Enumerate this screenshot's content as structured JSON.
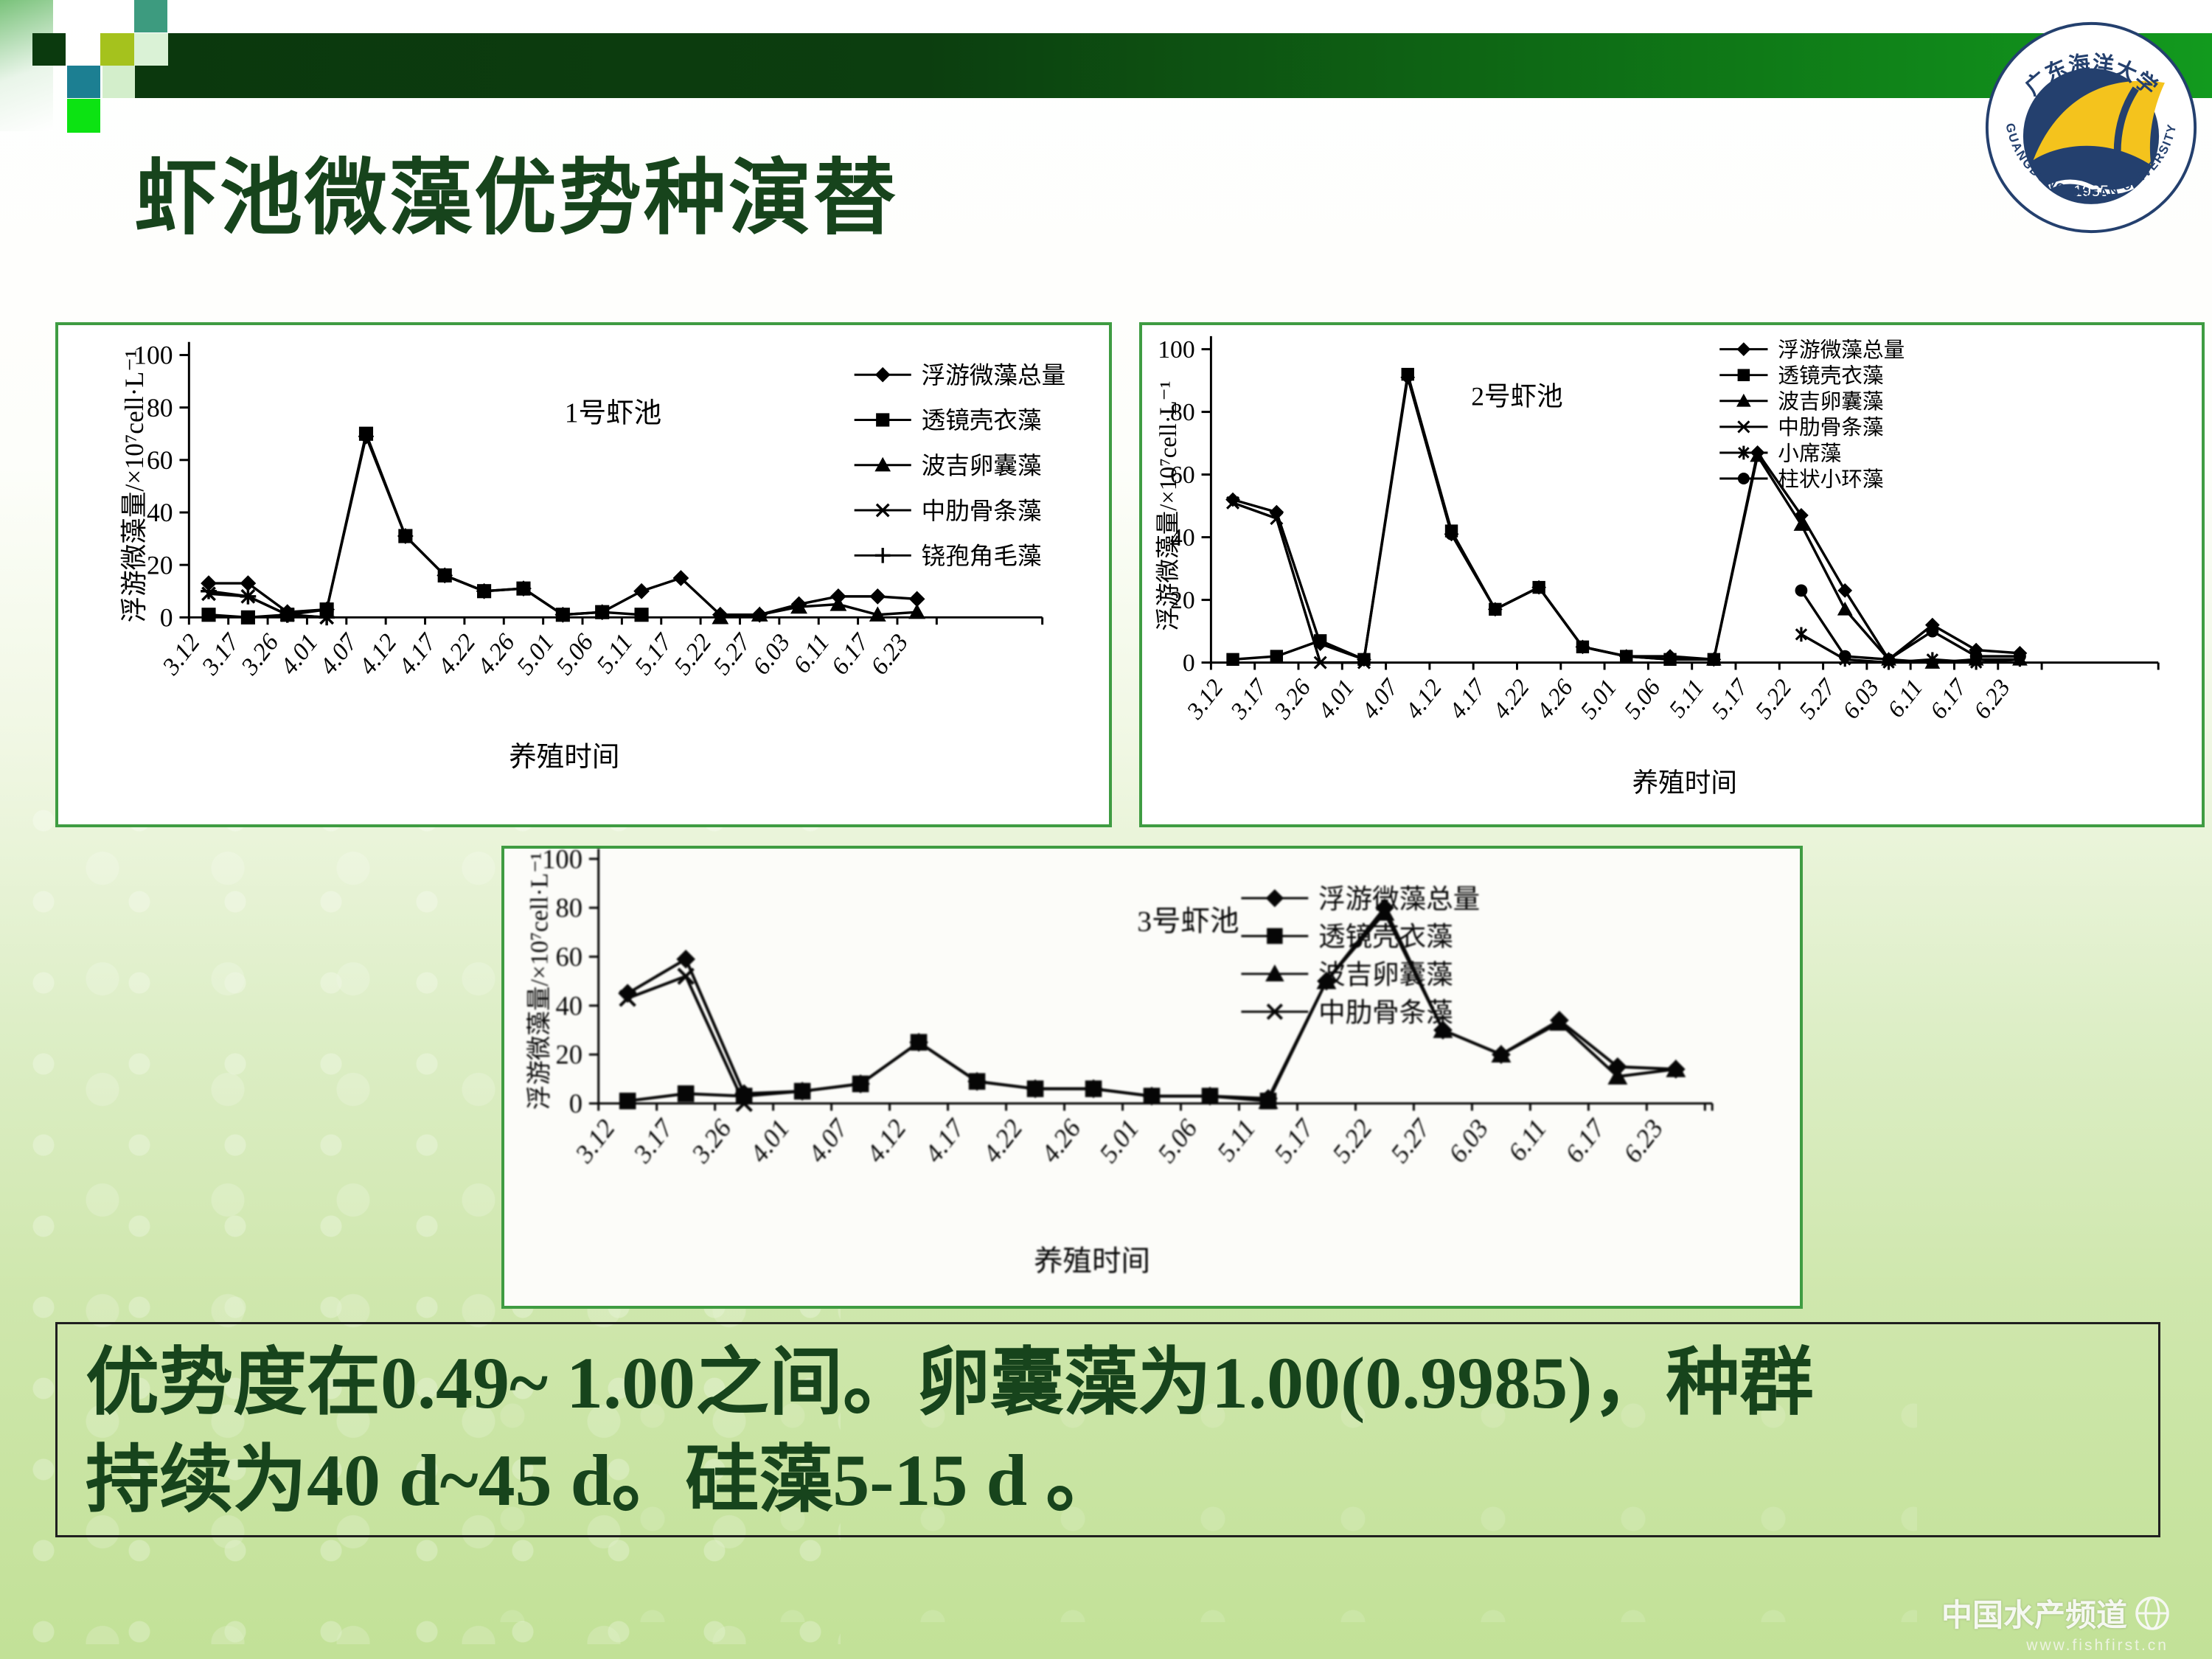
{
  "slide": {
    "title": "虾池微藻优势种演替",
    "conclusion": {
      "line1": "优势度在0.49~ 1.00之间。卵囊藻为1.00(0.9985)，种群",
      "line2": "持续为40 d~45 d。硅藻5-15 d 。"
    },
    "watermark": {
      "text": "中国水产频道",
      "url": "www.fishfirst.cn"
    },
    "logo": {
      "year": "1935",
      "top_text": "广东海洋大学",
      "bottom_text": "GUANGDONG OCEAN UNIVERSITY"
    },
    "colors": {
      "title_green": "#17441c",
      "header_bar_dark": "#0b380d",
      "header_bar_light": "#129a1e",
      "chart_border_green": "#3f9c42",
      "slide_bottom_green": "#c2e197",
      "logo_navy": "#24406e",
      "logo_yellow": "#f4c31d",
      "line_black": "#000000"
    }
  },
  "chart_data": [
    {
      "type": "line",
      "title": "1号虾池",
      "xlabel": "养殖时间",
      "ylabel": "浮游微藻量/×10⁷cell·L⁻¹",
      "ylim": [
        0,
        100
      ],
      "yticks": [
        0,
        20,
        40,
        60,
        80,
        100
      ],
      "grid": false,
      "legend_position": "right-top",
      "categories": [
        "3.12",
        "3.17",
        "3.26",
        "4.01",
        "4.07",
        "4.12",
        "4.17",
        "4.22",
        "4.26",
        "5.01",
        "5.06",
        "5.11",
        "5.17",
        "5.22",
        "5.27",
        "6.03",
        "6.11",
        "6.17",
        "6.23"
      ],
      "series": [
        {
          "name": "浮游微藻总量",
          "marker": "diamond",
          "values": [
            13,
            13,
            2,
            3,
            69,
            31,
            16,
            10,
            11,
            1,
            2,
            10,
            15,
            1,
            1,
            5,
            8,
            8,
            7
          ]
        },
        {
          "name": "透镜壳衣藻",
          "marker": "square",
          "values": [
            1,
            0,
            1,
            3,
            70,
            31,
            16,
            10,
            11,
            1,
            2,
            1,
            null,
            null,
            null,
            null,
            null,
            null,
            null
          ]
        },
        {
          "name": "波吉卵囊藻",
          "marker": "triangle",
          "values": [
            null,
            null,
            null,
            null,
            null,
            null,
            null,
            null,
            null,
            null,
            null,
            null,
            null,
            0,
            1,
            4,
            5,
            1,
            2
          ]
        },
        {
          "name": "中肋骨条藻",
          "marker": "x",
          "values": [
            9,
            8,
            1,
            0,
            null,
            null,
            null,
            null,
            null,
            null,
            null,
            null,
            null,
            null,
            null,
            null,
            null,
            null,
            null
          ]
        },
        {
          "name": "铙孢角毛藻",
          "marker": "plus",
          "values": [
            10,
            8,
            1,
            0,
            null,
            null,
            null,
            null,
            null,
            null,
            null,
            null,
            null,
            null,
            null,
            null,
            null,
            null,
            null
          ]
        }
      ]
    },
    {
      "type": "line",
      "title": "2号虾池",
      "xlabel": "养殖时间",
      "ylabel": "浮游微藻量/×10⁷cell·L⁻¹",
      "ylim": [
        0,
        100
      ],
      "yticks": [
        0,
        20,
        40,
        60,
        80,
        100
      ],
      "grid": false,
      "legend_position": "right-top",
      "categories": [
        "3.12",
        "3.17",
        "3.26",
        "4.01",
        "4.07",
        "4.12",
        "4.17",
        "4.22",
        "4.26",
        "5.01",
        "5.06",
        "5.11",
        "5.17",
        "5.22",
        "5.27",
        "6.03",
        "6.11",
        "6.17",
        "6.23"
      ],
      "series": [
        {
          "name": "浮游微藻总量",
          "marker": "diamond",
          "values": [
            52,
            48,
            6,
            1,
            91,
            41,
            17,
            24,
            5,
            2,
            2,
            1,
            67,
            47,
            23,
            1,
            12,
            4,
            3
          ]
        },
        {
          "name": "透镜壳衣藻",
          "marker": "square",
          "values": [
            1,
            2,
            7,
            1,
            92,
            42,
            17,
            24,
            5,
            2,
            1,
            1,
            null,
            null,
            null,
            null,
            null,
            null,
            null
          ]
        },
        {
          "name": "波吉卵囊藻",
          "marker": "triangle",
          "values": [
            null,
            null,
            null,
            null,
            null,
            null,
            null,
            null,
            null,
            null,
            null,
            1,
            66,
            44,
            17,
            1,
            0,
            1,
            1
          ]
        },
        {
          "name": "中肋骨条藻",
          "marker": "x",
          "values": [
            51,
            46,
            0,
            0,
            null,
            null,
            null,
            null,
            null,
            null,
            null,
            null,
            null,
            null,
            null,
            null,
            null,
            null,
            null
          ]
        },
        {
          "name": "小席藻",
          "marker": "asterisk",
          "values": [
            null,
            null,
            null,
            null,
            null,
            null,
            null,
            null,
            null,
            null,
            null,
            null,
            null,
            9,
            1,
            0,
            1,
            0,
            1
          ]
        },
        {
          "name": "柱状小环藻",
          "marker": "circle",
          "values": [
            null,
            null,
            null,
            null,
            null,
            41,
            17,
            24,
            5,
            2,
            1,
            1,
            null,
            23,
            2,
            1,
            10,
            2,
            2
          ]
        }
      ]
    },
    {
      "type": "line",
      "title": "3号虾池",
      "xlabel": "养殖时间",
      "ylabel": "浮游微藻量/×10⁷cell·L⁻¹",
      "ylim": [
        0,
        100
      ],
      "yticks": [
        0,
        20,
        40,
        60,
        80,
        100
      ],
      "grid": false,
      "legend_position": "right-top",
      "categories": [
        "3.12",
        "3.17",
        "3.26",
        "4.01",
        "4.07",
        "4.12",
        "4.17",
        "4.22",
        "4.26",
        "5.01",
        "5.06",
        "5.11",
        "5.17",
        "5.22",
        "5.27",
        "6.03",
        "6.11",
        "6.17",
        "6.23"
      ],
      "series": [
        {
          "name": "浮游微藻总量",
          "marker": "diamond",
          "values": [
            45,
            59,
            4,
            5,
            8,
            25,
            9,
            6,
            6,
            3,
            3,
            2,
            50,
            80,
            30,
            20,
            34,
            15,
            14
          ]
        },
        {
          "name": "透镜壳衣藻",
          "marker": "square",
          "values": [
            1,
            4,
            3,
            5,
            8,
            25,
            9,
            6,
            6,
            3,
            3,
            1,
            null,
            null,
            null,
            null,
            null,
            null,
            null
          ]
        },
        {
          "name": "波吉卵囊藻",
          "marker": "triangle",
          "values": [
            null,
            null,
            null,
            null,
            null,
            null,
            null,
            null,
            null,
            null,
            null,
            1,
            50,
            78,
            30,
            20,
            33,
            11,
            14
          ]
        },
        {
          "name": "中肋骨条藻",
          "marker": "x",
          "values": [
            43,
            52,
            0,
            null,
            null,
            null,
            null,
            null,
            null,
            null,
            null,
            null,
            null,
            null,
            null,
            null,
            null,
            null,
            null
          ]
        }
      ]
    }
  ]
}
